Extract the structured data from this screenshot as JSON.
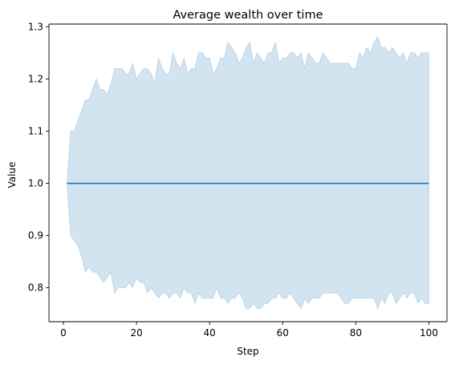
{
  "chart_data": {
    "type": "line",
    "title": "Average wealth over time",
    "xlabel": "Step",
    "ylabel": "Value",
    "xlim": [
      -3.95,
      104.95
    ],
    "ylim": [
      0.735,
      1.305
    ],
    "xticks": [
      0,
      20,
      40,
      60,
      80,
      100
    ],
    "yticks": [
      0.8,
      0.9,
      1.0,
      1.1,
      1.2,
      1.3
    ],
    "ytick_labels": [
      "0.8",
      "0.9",
      "1.0",
      "1.1",
      "1.2",
      "1.3"
    ],
    "grid": false,
    "legend": "none",
    "colors": {
      "line": "#1f77b4",
      "band": "#1f77b4",
      "axes": "#000000"
    },
    "band_opacity": 0.2,
    "series": [
      {
        "x": [
          1,
          100
        ],
        "values": [
          1.0,
          1.0
        ]
      }
    ],
    "confidence_band": {
      "x": [
        1,
        2,
        3,
        4,
        5,
        6,
        7,
        8,
        9,
        10,
        11,
        12,
        13,
        14,
        15,
        16,
        17,
        18,
        19,
        20,
        21,
        22,
        23,
        24,
        25,
        26,
        27,
        28,
        29,
        30,
        31,
        32,
        33,
        34,
        35,
        36,
        37,
        38,
        39,
        40,
        41,
        42,
        43,
        44,
        45,
        46,
        47,
        48,
        49,
        50,
        51,
        52,
        53,
        54,
        55,
        56,
        57,
        58,
        59,
        60,
        61,
        62,
        63,
        64,
        65,
        66,
        67,
        68,
        69,
        70,
        71,
        72,
        73,
        74,
        75,
        76,
        77,
        78,
        79,
        80,
        81,
        82,
        83,
        84,
        85,
        86,
        87,
        88,
        89,
        90,
        91,
        92,
        93,
        94,
        95,
        96,
        97,
        98,
        99,
        100
      ],
      "upper": [
        1.0,
        1.1,
        1.1,
        1.12,
        1.14,
        1.16,
        1.16,
        1.18,
        1.2,
        1.18,
        1.18,
        1.17,
        1.19,
        1.22,
        1.22,
        1.22,
        1.21,
        1.21,
        1.23,
        1.2,
        1.21,
        1.22,
        1.22,
        1.21,
        1.19,
        1.24,
        1.22,
        1.21,
        1.21,
        1.25,
        1.23,
        1.22,
        1.24,
        1.21,
        1.22,
        1.22,
        1.25,
        1.25,
        1.24,
        1.24,
        1.21,
        1.22,
        1.24,
        1.24,
        1.27,
        1.26,
        1.25,
        1.23,
        1.24,
        1.26,
        1.27,
        1.23,
        1.25,
        1.24,
        1.23,
        1.25,
        1.25,
        1.27,
        1.23,
        1.24,
        1.24,
        1.25,
        1.25,
        1.24,
        1.25,
        1.22,
        1.25,
        1.24,
        1.23,
        1.23,
        1.25,
        1.24,
        1.23,
        1.23,
        1.23,
        1.23,
        1.23,
        1.23,
        1.22,
        1.22,
        1.25,
        1.24,
        1.26,
        1.25,
        1.27,
        1.28,
        1.26,
        1.26,
        1.25,
        1.26,
        1.25,
        1.24,
        1.25,
        1.23,
        1.25,
        1.25,
        1.24,
        1.25,
        1.25,
        1.25
      ],
      "lower": [
        1.0,
        0.9,
        0.89,
        0.88,
        0.86,
        0.83,
        0.84,
        0.83,
        0.83,
        0.82,
        0.81,
        0.82,
        0.83,
        0.79,
        0.8,
        0.8,
        0.8,
        0.81,
        0.8,
        0.82,
        0.81,
        0.81,
        0.79,
        0.8,
        0.79,
        0.78,
        0.79,
        0.79,
        0.78,
        0.79,
        0.79,
        0.78,
        0.8,
        0.79,
        0.79,
        0.77,
        0.79,
        0.78,
        0.78,
        0.78,
        0.78,
        0.8,
        0.78,
        0.78,
        0.77,
        0.78,
        0.78,
        0.79,
        0.78,
        0.76,
        0.76,
        0.77,
        0.76,
        0.76,
        0.77,
        0.77,
        0.78,
        0.78,
        0.79,
        0.78,
        0.78,
        0.79,
        0.78,
        0.77,
        0.76,
        0.78,
        0.77,
        0.78,
        0.78,
        0.78,
        0.79,
        0.79,
        0.79,
        0.79,
        0.79,
        0.78,
        0.77,
        0.77,
        0.78,
        0.78,
        0.78,
        0.78,
        0.78,
        0.78,
        0.78,
        0.76,
        0.78,
        0.77,
        0.79,
        0.79,
        0.77,
        0.78,
        0.79,
        0.78,
        0.79,
        0.79,
        0.77,
        0.78,
        0.77,
        0.77
      ]
    }
  }
}
